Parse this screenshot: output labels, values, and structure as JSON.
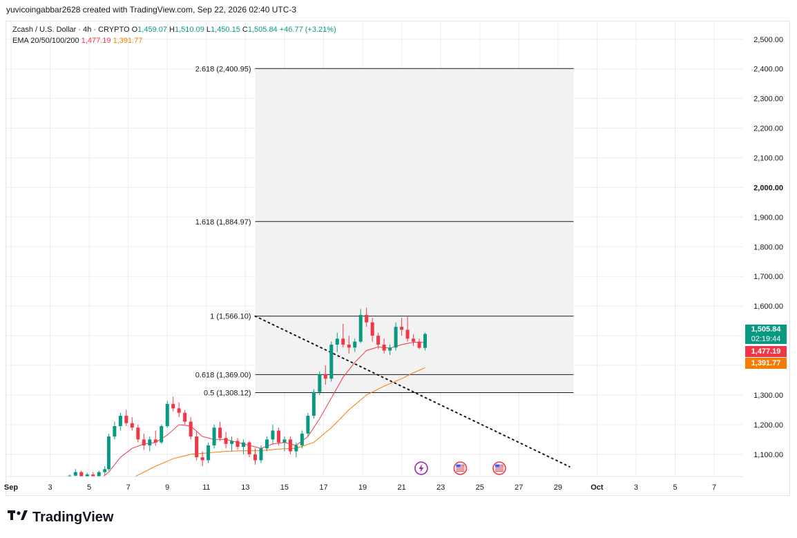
{
  "header": {
    "attribution": "yuvicoingabbar2628 created with TradingView.com, Sep 22, 2026 02:40 UTC-3"
  },
  "legend": {
    "symbol": "Zcash / U.S. Dollar · 4h · CRYPTO",
    "open_label": "O",
    "open": "1,459.07",
    "high_label": "H",
    "high": "1,510.09",
    "low_label": "L",
    "low": "1,450.15",
    "close_label": "C",
    "close": "1,505.84",
    "change": "+46.77 (+3.21%)",
    "ema_label": "EMA 20/50/100/200",
    "ema20": "1,477.19",
    "ema50": "1,391.77"
  },
  "price_tags": {
    "last_price": "1,505.84",
    "countdown": "02:19:44",
    "ema20": "1,477.19",
    "ema50": "1,391.77"
  },
  "colors": {
    "up": "#089981",
    "down": "#f23645",
    "ema20": "#f23645",
    "ema50": "#f57c00",
    "fib_zone": "#f2f2f2",
    "grid": "#e9ebf0"
  },
  "footer": {
    "brand": "TradingView"
  },
  "chart_data": {
    "type": "candlestick",
    "y_ticks": [
      1100,
      1200,
      1300,
      1400,
      1500,
      1600,
      1700,
      1800,
      1900,
      2000,
      2100,
      2200,
      2300,
      2400,
      2500
    ],
    "y_tick_labels": [
      "1,100.00",
      "1,200.00",
      "1,300.00",
      "1,400.00",
      "1,500.00",
      "1,600.00",
      "1,700.00",
      "1,800.00",
      "1,900.00",
      "2,000.00",
      "2,100.00",
      "2,200.00",
      "2,300.00",
      "2,400.00",
      "2,500.00"
    ],
    "ylim": [
      1025,
      2560
    ],
    "x_ticks": [
      {
        "day": 1,
        "label": "Sep"
      },
      {
        "day": 3,
        "label": "3"
      },
      {
        "day": 5,
        "label": "5"
      },
      {
        "day": 7,
        "label": "7"
      },
      {
        "day": 9,
        "label": "9"
      },
      {
        "day": 11,
        "label": "11"
      },
      {
        "day": 13,
        "label": "13"
      },
      {
        "day": 15,
        "label": "15"
      },
      {
        "day": 17,
        "label": "17"
      },
      {
        "day": 19,
        "label": "19"
      },
      {
        "day": 21,
        "label": "21"
      },
      {
        "day": 23,
        "label": "23"
      },
      {
        "day": 25,
        "label": "25"
      },
      {
        "day": 27,
        "label": "27"
      },
      {
        "day": 29,
        "label": "29"
      },
      {
        "day": 31,
        "label": "Oct"
      },
      {
        "day": 33,
        "label": "3"
      },
      {
        "day": 35,
        "label": "5"
      },
      {
        "day": 37,
        "label": "7"
      }
    ],
    "fib_levels": [
      {
        "level": "2.618",
        "price": 2400.95,
        "label": "2.618 (2,400.95)"
      },
      {
        "level": "1.618",
        "price": 1884.97,
        "label": "1.618 (1,884.97)"
      },
      {
        "level": "1",
        "price": 1566.1,
        "label": "1 (1,566.10)"
      },
      {
        "level": "0.618",
        "price": 1369.0,
        "label": "0.618 (1,369.00)"
      },
      {
        "level": "0.5",
        "price": 1308.12,
        "label": "0.5 (1,308.12)"
      }
    ],
    "fib_range_days": [
      13.5,
      29.8
    ],
    "trendline": [
      {
        "day": 13.5,
        "price": 1566
      },
      {
        "day": 29.6,
        "price": 1058
      }
    ],
    "candles": [
      {
        "day": 4.0,
        "o": 1020,
        "h": 1032,
        "l": 1012,
        "c": 1028
      },
      {
        "day": 4.3,
        "o": 1028,
        "h": 1050,
        "l": 1020,
        "c": 1040
      },
      {
        "day": 4.6,
        "o": 1040,
        "h": 1045,
        "l": 1018,
        "c": 1025
      },
      {
        "day": 4.9,
        "o": 1025,
        "h": 1038,
        "l": 1015,
        "c": 1032
      },
      {
        "day": 5.2,
        "o": 1032,
        "h": 1040,
        "l": 1018,
        "c": 1022
      },
      {
        "day": 5.5,
        "o": 1022,
        "h": 1045,
        "l": 1015,
        "c": 1040
      },
      {
        "day": 5.8,
        "o": 1040,
        "h": 1060,
        "l": 1030,
        "c": 1050
      },
      {
        "day": 6.0,
        "o": 1050,
        "h": 1170,
        "l": 1045,
        "c": 1160
      },
      {
        "day": 6.3,
        "o": 1160,
        "h": 1210,
        "l": 1150,
        "c": 1195
      },
      {
        "day": 6.6,
        "o": 1195,
        "h": 1240,
        "l": 1180,
        "c": 1230
      },
      {
        "day": 6.9,
        "o": 1230,
        "h": 1250,
        "l": 1195,
        "c": 1205
      },
      {
        "day": 7.2,
        "o": 1205,
        "h": 1225,
        "l": 1180,
        "c": 1190
      },
      {
        "day": 7.5,
        "o": 1190,
        "h": 1200,
        "l": 1140,
        "c": 1150
      },
      {
        "day": 7.8,
        "o": 1150,
        "h": 1170,
        "l": 1115,
        "c": 1130
      },
      {
        "day": 8.1,
        "o": 1130,
        "h": 1160,
        "l": 1110,
        "c": 1150
      },
      {
        "day": 8.4,
        "o": 1150,
        "h": 1180,
        "l": 1130,
        "c": 1140
      },
      {
        "day": 8.7,
        "o": 1140,
        "h": 1200,
        "l": 1135,
        "c": 1195
      },
      {
        "day": 9.0,
        "o": 1195,
        "h": 1280,
        "l": 1190,
        "c": 1270
      },
      {
        "day": 9.3,
        "o": 1270,
        "h": 1295,
        "l": 1245,
        "c": 1255
      },
      {
        "day": 9.6,
        "o": 1255,
        "h": 1275,
        "l": 1225,
        "c": 1240
      },
      {
        "day": 9.9,
        "o": 1240,
        "h": 1250,
        "l": 1200,
        "c": 1210
      },
      {
        "day": 10.2,
        "o": 1210,
        "h": 1225,
        "l": 1150,
        "c": 1160
      },
      {
        "day": 10.5,
        "o": 1160,
        "h": 1175,
        "l": 1080,
        "c": 1090
      },
      {
        "day": 10.8,
        "o": 1090,
        "h": 1110,
        "l": 1060,
        "c": 1080
      },
      {
        "day": 11.1,
        "o": 1080,
        "h": 1140,
        "l": 1070,
        "c": 1130
      },
      {
        "day": 11.4,
        "o": 1130,
        "h": 1200,
        "l": 1120,
        "c": 1190
      },
      {
        "day": 11.7,
        "o": 1190,
        "h": 1210,
        "l": 1145,
        "c": 1155
      },
      {
        "day": 12.0,
        "o": 1155,
        "h": 1175,
        "l": 1120,
        "c": 1135
      },
      {
        "day": 12.3,
        "o": 1135,
        "h": 1160,
        "l": 1110,
        "c": 1145
      },
      {
        "day": 12.6,
        "o": 1145,
        "h": 1155,
        "l": 1115,
        "c": 1125
      },
      {
        "day": 12.9,
        "o": 1125,
        "h": 1150,
        "l": 1100,
        "c": 1140
      },
      {
        "day": 13.2,
        "o": 1140,
        "h": 1145,
        "l": 1090,
        "c": 1100
      },
      {
        "day": 13.5,
        "o": 1100,
        "h": 1120,
        "l": 1065,
        "c": 1080
      },
      {
        "day": 13.8,
        "o": 1080,
        "h": 1130,
        "l": 1070,
        "c": 1120
      },
      {
        "day": 14.1,
        "o": 1120,
        "h": 1160,
        "l": 1110,
        "c": 1150
      },
      {
        "day": 14.4,
        "o": 1150,
        "h": 1200,
        "l": 1135,
        "c": 1180
      },
      {
        "day": 14.7,
        "o": 1180,
        "h": 1190,
        "l": 1130,
        "c": 1140
      },
      {
        "day": 15.0,
        "o": 1140,
        "h": 1160,
        "l": 1110,
        "c": 1150
      },
      {
        "day": 15.3,
        "o": 1150,
        "h": 1160,
        "l": 1100,
        "c": 1110
      },
      {
        "day": 15.6,
        "o": 1110,
        "h": 1140,
        "l": 1090,
        "c": 1130
      },
      {
        "day": 15.9,
        "o": 1130,
        "h": 1180,
        "l": 1120,
        "c": 1170
      },
      {
        "day": 16.2,
        "o": 1170,
        "h": 1240,
        "l": 1160,
        "c": 1230
      },
      {
        "day": 16.5,
        "o": 1230,
        "h": 1320,
        "l": 1220,
        "c": 1310
      },
      {
        "day": 16.8,
        "o": 1310,
        "h": 1380,
        "l": 1300,
        "c": 1370
      },
      {
        "day": 17.1,
        "o": 1370,
        "h": 1400,
        "l": 1335,
        "c": 1355
      },
      {
        "day": 17.4,
        "o": 1355,
        "h": 1480,
        "l": 1345,
        "c": 1470
      },
      {
        "day": 17.7,
        "o": 1470,
        "h": 1510,
        "l": 1445,
        "c": 1490
      },
      {
        "day": 18.0,
        "o": 1490,
        "h": 1540,
        "l": 1460,
        "c": 1470
      },
      {
        "day": 18.3,
        "o": 1470,
        "h": 1500,
        "l": 1440,
        "c": 1460
      },
      {
        "day": 18.6,
        "o": 1460,
        "h": 1490,
        "l": 1445,
        "c": 1480
      },
      {
        "day": 18.9,
        "o": 1480,
        "h": 1590,
        "l": 1475,
        "c": 1570
      },
      {
        "day": 19.2,
        "o": 1570,
        "h": 1595,
        "l": 1530,
        "c": 1545
      },
      {
        "day": 19.5,
        "o": 1545,
        "h": 1560,
        "l": 1480,
        "c": 1500
      },
      {
        "day": 19.8,
        "o": 1500,
        "h": 1510,
        "l": 1455,
        "c": 1470
      },
      {
        "day": 20.1,
        "o": 1470,
        "h": 1490,
        "l": 1440,
        "c": 1450
      },
      {
        "day": 20.4,
        "o": 1450,
        "h": 1470,
        "l": 1435,
        "c": 1460
      },
      {
        "day": 20.7,
        "o": 1460,
        "h": 1545,
        "l": 1450,
        "c": 1530
      },
      {
        "day": 21.0,
        "o": 1530,
        "h": 1560,
        "l": 1500,
        "c": 1520
      },
      {
        "day": 21.3,
        "o": 1520,
        "h": 1566,
        "l": 1480,
        "c": 1490
      },
      {
        "day": 21.6,
        "o": 1490,
        "h": 1505,
        "l": 1465,
        "c": 1480
      },
      {
        "day": 21.9,
        "o": 1480,
        "h": 1490,
        "l": 1455,
        "c": 1459
      },
      {
        "day": 22.2,
        "o": 1459,
        "h": 1510,
        "l": 1450,
        "c": 1506
      }
    ],
    "ema20": [
      {
        "day": 5.3,
        "v": 1002
      },
      {
        "day": 6.0,
        "v": 1040
      },
      {
        "day": 6.6,
        "v": 1090
      },
      {
        "day": 7.2,
        "v": 1120
      },
      {
        "day": 7.8,
        "v": 1135
      },
      {
        "day": 8.4,
        "v": 1140
      },
      {
        "day": 9.0,
        "v": 1165
      },
      {
        "day": 9.6,
        "v": 1200
      },
      {
        "day": 10.2,
        "v": 1195
      },
      {
        "day": 10.8,
        "v": 1160
      },
      {
        "day": 11.4,
        "v": 1150
      },
      {
        "day": 12.0,
        "v": 1150
      },
      {
        "day": 12.6,
        "v": 1140
      },
      {
        "day": 13.2,
        "v": 1130
      },
      {
        "day": 13.8,
        "v": 1120
      },
      {
        "day": 14.4,
        "v": 1135
      },
      {
        "day": 15.0,
        "v": 1140
      },
      {
        "day": 15.6,
        "v": 1130
      },
      {
        "day": 16.2,
        "v": 1160
      },
      {
        "day": 16.8,
        "v": 1220
      },
      {
        "day": 17.4,
        "v": 1290
      },
      {
        "day": 18.0,
        "v": 1360
      },
      {
        "day": 18.6,
        "v": 1410
      },
      {
        "day": 19.2,
        "v": 1450
      },
      {
        "day": 19.8,
        "v": 1462
      },
      {
        "day": 20.4,
        "v": 1458
      },
      {
        "day": 21.0,
        "v": 1470
      },
      {
        "day": 21.6,
        "v": 1478
      },
      {
        "day": 22.2,
        "v": 1477
      }
    ],
    "ema50": [
      {
        "day": 6.7,
        "v": 1002
      },
      {
        "day": 7.5,
        "v": 1030
      },
      {
        "day": 8.4,
        "v": 1060
      },
      {
        "day": 9.3,
        "v": 1085
      },
      {
        "day": 10.2,
        "v": 1100
      },
      {
        "day": 11.1,
        "v": 1105
      },
      {
        "day": 12.0,
        "v": 1110
      },
      {
        "day": 12.9,
        "v": 1112
      },
      {
        "day": 13.8,
        "v": 1112
      },
      {
        "day": 14.7,
        "v": 1118
      },
      {
        "day": 15.6,
        "v": 1120
      },
      {
        "day": 16.5,
        "v": 1140
      },
      {
        "day": 17.4,
        "v": 1190
      },
      {
        "day": 18.3,
        "v": 1250
      },
      {
        "day": 19.2,
        "v": 1300
      },
      {
        "day": 20.1,
        "v": 1330
      },
      {
        "day": 21.0,
        "v": 1355
      },
      {
        "day": 21.6,
        "v": 1375
      },
      {
        "day": 22.2,
        "v": 1392
      }
    ],
    "event_markers": [
      {
        "day": 22.0,
        "icon": "lightning-icon"
      },
      {
        "day": 24.0,
        "icon": "us-flag-icon"
      },
      {
        "day": 26.0,
        "icon": "us-flag-icon"
      }
    ]
  }
}
